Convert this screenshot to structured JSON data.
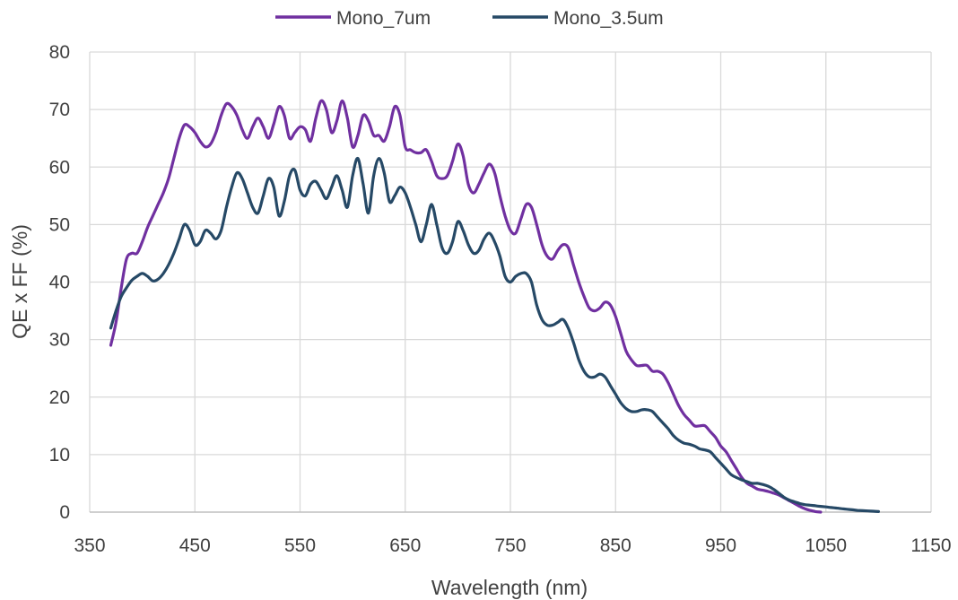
{
  "chart_data": {
    "type": "line",
    "title": "",
    "xlabel": "Wavelength (nm)",
    "ylabel": "QE x FF (%)",
    "xlim": [
      350,
      1150
    ],
    "ylim": [
      0,
      80
    ],
    "xticks": [
      350,
      450,
      550,
      650,
      750,
      850,
      950,
      1050,
      1150
    ],
    "yticks": [
      0,
      10,
      20,
      30,
      40,
      50,
      60,
      70,
      80
    ],
    "grid": true,
    "legend_position": "top-center",
    "series": [
      {
        "name": "Mono_7um",
        "color": "#7030a0",
        "points": [
          [
            370,
            29
          ],
          [
            375,
            33
          ],
          [
            380,
            39
          ],
          [
            385,
            44
          ],
          [
            390,
            45
          ],
          [
            395,
            45
          ],
          [
            400,
            47
          ],
          [
            405,
            49.5
          ],
          [
            410,
            51.5
          ],
          [
            415,
            53.5
          ],
          [
            420,
            55.5
          ],
          [
            425,
            58
          ],
          [
            430,
            61.5
          ],
          [
            435,
            65
          ],
          [
            440,
            67.3
          ],
          [
            445,
            67
          ],
          [
            450,
            66
          ],
          [
            455,
            64.5
          ],
          [
            460,
            63.5
          ],
          [
            465,
            64
          ],
          [
            470,
            66
          ],
          [
            475,
            69
          ],
          [
            480,
            71
          ],
          [
            485,
            70.5
          ],
          [
            490,
            69
          ],
          [
            495,
            66.5
          ],
          [
            500,
            65
          ],
          [
            505,
            67
          ],
          [
            510,
            68.5
          ],
          [
            515,
            67
          ],
          [
            520,
            65
          ],
          [
            525,
            67.5
          ],
          [
            530,
            70.5
          ],
          [
            535,
            69
          ],
          [
            540,
            65
          ],
          [
            545,
            66
          ],
          [
            550,
            67
          ],
          [
            555,
            66.5
          ],
          [
            560,
            64.5
          ],
          [
            565,
            68.5
          ],
          [
            570,
            71.5
          ],
          [
            575,
            70
          ],
          [
            580,
            66
          ],
          [
            585,
            68
          ],
          [
            590,
            71.5
          ],
          [
            595,
            68.5
          ],
          [
            600,
            63.5
          ],
          [
            605,
            65.5
          ],
          [
            610,
            69
          ],
          [
            615,
            68
          ],
          [
            620,
            65.5
          ],
          [
            625,
            65.5
          ],
          [
            630,
            64.5
          ],
          [
            635,
            67
          ],
          [
            640,
            70.5
          ],
          [
            645,
            69
          ],
          [
            650,
            63.5
          ],
          [
            655,
            63
          ],
          [
            660,
            62.5
          ],
          [
            665,
            62.5
          ],
          [
            670,
            63
          ],
          [
            675,
            61
          ],
          [
            680,
            58.5
          ],
          [
            685,
            58
          ],
          [
            690,
            58.5
          ],
          [
            695,
            61
          ],
          [
            700,
            64
          ],
          [
            705,
            62
          ],
          [
            710,
            57
          ],
          [
            715,
            55.5
          ],
          [
            720,
            57
          ],
          [
            725,
            59
          ],
          [
            730,
            60.5
          ],
          [
            735,
            59
          ],
          [
            740,
            55
          ],
          [
            745,
            51.5
          ],
          [
            750,
            49
          ],
          [
            755,
            48.5
          ],
          [
            760,
            51
          ],
          [
            765,
            53.5
          ],
          [
            770,
            53
          ],
          [
            775,
            50
          ],
          [
            780,
            46.5
          ],
          [
            785,
            44.5
          ],
          [
            790,
            44
          ],
          [
            795,
            45.5
          ],
          [
            800,
            46.5
          ],
          [
            805,
            46
          ],
          [
            810,
            43
          ],
          [
            815,
            40
          ],
          [
            820,
            37.5
          ],
          [
            825,
            35.5
          ],
          [
            830,
            35
          ],
          [
            835,
            35.5
          ],
          [
            840,
            36.5
          ],
          [
            845,
            36
          ],
          [
            850,
            34
          ],
          [
            855,
            31
          ],
          [
            860,
            28
          ],
          [
            865,
            26.5
          ],
          [
            870,
            25.5
          ],
          [
            875,
            25.5
          ],
          [
            880,
            25.5
          ],
          [
            885,
            24.5
          ],
          [
            890,
            24.5
          ],
          [
            895,
            24
          ],
          [
            900,
            22.5
          ],
          [
            905,
            20.5
          ],
          [
            910,
            18.5
          ],
          [
            915,
            17
          ],
          [
            920,
            16
          ],
          [
            925,
            15
          ],
          [
            930,
            15
          ],
          [
            935,
            15
          ],
          [
            940,
            14
          ],
          [
            945,
            13
          ],
          [
            950,
            11.5
          ],
          [
            955,
            10.5
          ],
          [
            960,
            9
          ],
          [
            965,
            7.5
          ],
          [
            970,
            6
          ],
          [
            975,
            5
          ],
          [
            980,
            4.5
          ],
          [
            985,
            4
          ],
          [
            990,
            3.8
          ],
          [
            995,
            3.6
          ],
          [
            1000,
            3.3
          ],
          [
            1005,
            3
          ],
          [
            1010,
            2.5
          ],
          [
            1015,
            2
          ],
          [
            1020,
            1.5
          ],
          [
            1025,
            1
          ],
          [
            1030,
            0.6
          ],
          [
            1035,
            0.3
          ],
          [
            1040,
            0.1
          ],
          [
            1045,
            0
          ]
        ]
      },
      {
        "name": "Mono_3.5um",
        "color": "#264966",
        "points": [
          [
            370,
            32
          ],
          [
            375,
            35
          ],
          [
            380,
            37.5
          ],
          [
            385,
            39
          ],
          [
            390,
            40.3
          ],
          [
            395,
            41
          ],
          [
            400,
            41.5
          ],
          [
            405,
            41
          ],
          [
            410,
            40.2
          ],
          [
            415,
            40.5
          ],
          [
            420,
            41.5
          ],
          [
            425,
            43
          ],
          [
            430,
            45
          ],
          [
            435,
            47.5
          ],
          [
            440,
            50
          ],
          [
            445,
            49
          ],
          [
            450,
            46.5
          ],
          [
            455,
            47
          ],
          [
            460,
            49
          ],
          [
            465,
            48.5
          ],
          [
            470,
            47.5
          ],
          [
            475,
            49
          ],
          [
            480,
            53
          ],
          [
            485,
            56.5
          ],
          [
            490,
            59
          ],
          [
            495,
            58
          ],
          [
            500,
            55.5
          ],
          [
            505,
            53
          ],
          [
            510,
            52
          ],
          [
            515,
            55
          ],
          [
            520,
            58
          ],
          [
            525,
            56.5
          ],
          [
            530,
            51.5
          ],
          [
            535,
            54
          ],
          [
            540,
            58.5
          ],
          [
            545,
            59.5
          ],
          [
            550,
            56
          ],
          [
            555,
            55
          ],
          [
            560,
            57
          ],
          [
            565,
            57.5
          ],
          [
            570,
            56
          ],
          [
            575,
            54.5
          ],
          [
            580,
            56.5
          ],
          [
            585,
            58.5
          ],
          [
            590,
            56
          ],
          [
            595,
            53
          ],
          [
            600,
            58.5
          ],
          [
            605,
            61.5
          ],
          [
            610,
            57
          ],
          [
            615,
            52
          ],
          [
            620,
            58.5
          ],
          [
            625,
            61.5
          ],
          [
            630,
            59
          ],
          [
            635,
            54
          ],
          [
            640,
            55
          ],
          [
            645,
            56.5
          ],
          [
            650,
            55.5
          ],
          [
            655,
            53
          ],
          [
            660,
            50
          ],
          [
            665,
            47
          ],
          [
            670,
            50
          ],
          [
            675,
            53.5
          ],
          [
            680,
            50
          ],
          [
            685,
            46
          ],
          [
            690,
            45
          ],
          [
            695,
            47
          ],
          [
            700,
            50.5
          ],
          [
            705,
            49
          ],
          [
            710,
            46.5
          ],
          [
            715,
            45
          ],
          [
            720,
            45.5
          ],
          [
            725,
            47.5
          ],
          [
            730,
            48.5
          ],
          [
            735,
            47
          ],
          [
            740,
            44.5
          ],
          [
            745,
            41
          ],
          [
            750,
            40
          ],
          [
            755,
            41
          ],
          [
            760,
            41.5
          ],
          [
            765,
            41.5
          ],
          [
            770,
            40
          ],
          [
            775,
            36
          ],
          [
            780,
            33.5
          ],
          [
            785,
            32.5
          ],
          [
            790,
            32.5
          ],
          [
            795,
            33
          ],
          [
            800,
            33.5
          ],
          [
            805,
            32
          ],
          [
            810,
            29.5
          ],
          [
            815,
            26.5
          ],
          [
            820,
            24.5
          ],
          [
            825,
            23.5
          ],
          [
            830,
            23.5
          ],
          [
            835,
            24
          ],
          [
            840,
            23.5
          ],
          [
            845,
            22
          ],
          [
            850,
            20.5
          ],
          [
            855,
            19
          ],
          [
            860,
            18
          ],
          [
            865,
            17.5
          ],
          [
            870,
            17.5
          ],
          [
            875,
            17.8
          ],
          [
            880,
            17.8
          ],
          [
            885,
            17.5
          ],
          [
            890,
            16.5
          ],
          [
            895,
            15.5
          ],
          [
            900,
            14.5
          ],
          [
            905,
            13.3
          ],
          [
            910,
            12.5
          ],
          [
            915,
            12
          ],
          [
            920,
            11.8
          ],
          [
            925,
            11.5
          ],
          [
            930,
            11
          ],
          [
            935,
            10.8
          ],
          [
            940,
            10.5
          ],
          [
            945,
            9.5
          ],
          [
            950,
            8.5
          ],
          [
            955,
            7.5
          ],
          [
            960,
            6.5
          ],
          [
            965,
            6
          ],
          [
            970,
            5.6
          ],
          [
            975,
            5.3
          ],
          [
            980,
            5
          ],
          [
            985,
            5
          ],
          [
            990,
            4.8
          ],
          [
            995,
            4.5
          ],
          [
            1000,
            4
          ],
          [
            1005,
            3.3
          ],
          [
            1010,
            2.6
          ],
          [
            1015,
            2.1
          ],
          [
            1020,
            1.8
          ],
          [
            1025,
            1.5
          ],
          [
            1030,
            1.3
          ],
          [
            1035,
            1.2
          ],
          [
            1040,
            1.1
          ],
          [
            1045,
            1
          ],
          [
            1050,
            0.9
          ],
          [
            1055,
            0.8
          ],
          [
            1060,
            0.7
          ],
          [
            1065,
            0.6
          ],
          [
            1070,
            0.5
          ],
          [
            1075,
            0.4
          ],
          [
            1080,
            0.3
          ],
          [
            1085,
            0.25
          ],
          [
            1090,
            0.2
          ],
          [
            1095,
            0.15
          ],
          [
            1100,
            0.1
          ]
        ]
      }
    ]
  }
}
